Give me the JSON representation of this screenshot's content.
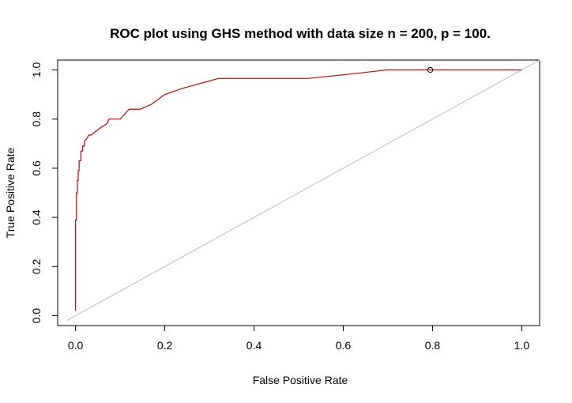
{
  "chart_data": {
    "type": "line",
    "title": "ROC plot using GHS method with data size n = 200, p = 100.",
    "xlabel": "False Positive Rate",
    "ylabel": "True Positive Rate",
    "xlim": [
      -0.04,
      1.04
    ],
    "ylim": [
      -0.04,
      1.04
    ],
    "xticks": [
      0.0,
      0.2,
      0.4,
      0.6,
      0.8,
      1.0
    ],
    "xtick_labels": [
      "0.0",
      "0.2",
      "0.4",
      "0.6",
      "0.8",
      "1.0"
    ],
    "yticks": [
      0.0,
      0.2,
      0.4,
      0.6,
      0.8,
      1.0
    ],
    "ytick_labels": [
      "0.0",
      "0.2",
      "0.4",
      "0.6",
      "0.8",
      "1.0"
    ],
    "grid": false,
    "reference_line": {
      "x": [
        -0.02,
        1.04
      ],
      "y": [
        -0.02,
        1.04
      ],
      "color": "#bebebe"
    },
    "series": [
      {
        "color": "#cc0000",
        "x": [
          0.0,
          0.0,
          0.002,
          0.002,
          0.004,
          0.004,
          0.006,
          0.006,
          0.008,
          0.008,
          0.012,
          0.012,
          0.016,
          0.016,
          0.02,
          0.02,
          0.025,
          0.03,
          0.035,
          0.045,
          0.06,
          0.07,
          0.075,
          0.1,
          0.12,
          0.145,
          0.17,
          0.2,
          0.24,
          0.28,
          0.32,
          0.4,
          0.52,
          0.6,
          0.65,
          0.7,
          0.72,
          0.8,
          1.0
        ],
        "y": [
          0.02,
          0.39,
          0.39,
          0.5,
          0.5,
          0.55,
          0.55,
          0.59,
          0.59,
          0.63,
          0.63,
          0.67,
          0.67,
          0.69,
          0.69,
          0.71,
          0.72,
          0.735,
          0.735,
          0.75,
          0.77,
          0.78,
          0.8,
          0.8,
          0.84,
          0.84,
          0.86,
          0.9,
          0.925,
          0.945,
          0.965,
          0.965,
          0.965,
          0.98,
          0.99,
          1.0,
          1.0,
          1.0,
          1.0
        ]
      }
    ],
    "marker": {
      "x": 0.795,
      "y": 1.0,
      "color": "#000000"
    }
  }
}
